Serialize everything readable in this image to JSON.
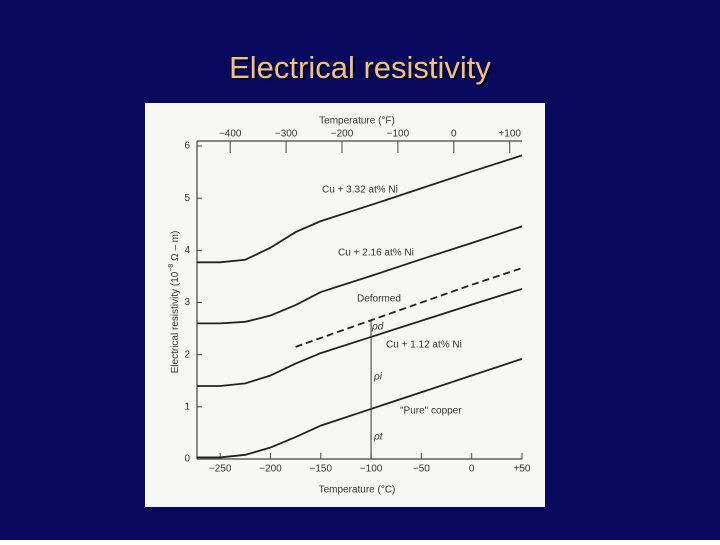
{
  "slide_title": "Electrical resistivity",
  "chart_data": {
    "type": "line",
    "x_label": "Temperature (°C)",
    "x2_label": "Temperature (°F)",
    "y_label": "Electrical resistivity (10",
    "y_label_exp": "−8",
    "y_label_unit": " Ω – m)",
    "x": [
      -273,
      -250,
      -225,
      -200,
      -175,
      -150,
      -100,
      -50,
      0,
      50
    ],
    "xlim": [
      -273,
      50
    ],
    "xticks": [
      {
        "value": -250,
        "label": "−250"
      },
      {
        "value": -200,
        "label": "−200"
      },
      {
        "value": -150,
        "label": "−150"
      },
      {
        "value": -100,
        "label": "−100"
      },
      {
        "value": -50,
        "label": "−50"
      },
      0,
      {
        "value": 50,
        "label": "+50"
      }
    ],
    "x2lim": [
      -459.4,
      122
    ],
    "x2ticks": [
      {
        "value": -400,
        "label": "−400"
      },
      {
        "value": -300,
        "label": "−300"
      },
      {
        "value": -200,
        "label": "−200"
      },
      {
        "value": -100,
        "label": "−100"
      },
      0,
      {
        "value": 100,
        "label": "+100"
      }
    ],
    "ylim": [
      0,
      6
    ],
    "yticks": [
      0,
      1,
      2,
      3,
      4,
      5,
      6
    ],
    "grid": false,
    "series": [
      {
        "name": "Cu + 3.32 at% Ni",
        "color": "#222222",
        "style": "solid",
        "values": [
          3.77,
          3.77,
          3.82,
          4.05,
          4.35,
          4.56,
          4.87,
          5.19,
          5.51,
          5.82
        ]
      },
      {
        "name": "Cu + 2.16 at% Ni",
        "color": "#222222",
        "style": "solid",
        "values": [
          2.6,
          2.6,
          2.63,
          2.75,
          2.95,
          3.2,
          3.51,
          3.83,
          4.14,
          4.46
        ]
      },
      {
        "name": "Deformed",
        "color": "#222222",
        "style": "dashed",
        "values": [
          null,
          null,
          null,
          null,
          2.15,
          2.32,
          2.66,
          3.0,
          3.34,
          3.66
        ]
      },
      {
        "name": "Cu + 1.12 at% Ni",
        "color": "#222222",
        "style": "solid",
        "values": [
          1.4,
          1.4,
          1.45,
          1.6,
          1.83,
          2.03,
          2.34,
          2.65,
          2.96,
          3.26
        ]
      },
      {
        "name": "\"Pure\" copper",
        "color": "#222222",
        "style": "solid",
        "values": [
          0.03,
          0.03,
          0.08,
          0.22,
          0.42,
          0.64,
          0.96,
          1.28,
          1.6,
          1.92
        ]
      }
    ],
    "annotations": [
      "ρd",
      "ρi",
      "ρt"
    ]
  }
}
